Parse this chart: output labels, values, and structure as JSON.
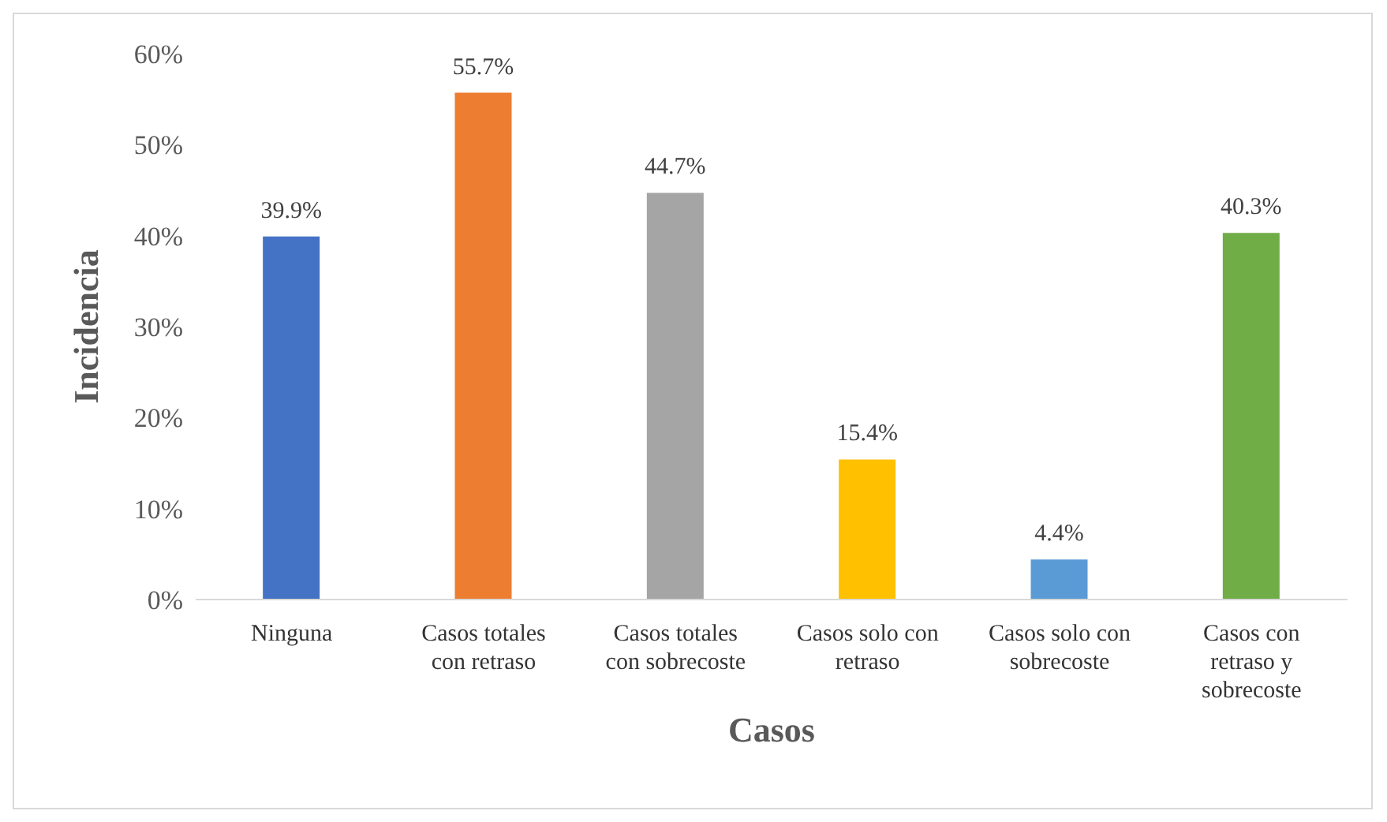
{
  "chart_data": {
    "type": "bar",
    "xlabel": "Casos",
    "ylabel": "Incidencia",
    "categories": [
      "Ninguna",
      "Casos totales con retraso",
      "Casos totales con sobrecoste",
      "Casos solo con retraso",
      "Casos solo con sobrecoste",
      "Casos con retraso y sobrecoste"
    ],
    "values": [
      39.9,
      55.7,
      44.7,
      15.4,
      4.4,
      40.3
    ],
    "colors": [
      "#4472c4",
      "#ed7d31",
      "#a5a5a5",
      "#ffc000",
      "#5b9bd5",
      "#70ad47"
    ],
    "value_labels": [
      "39.9%",
      "55.7%",
      "44.7%",
      "15.4%",
      "4.4%",
      "40.3%"
    ],
    "ylim": [
      0,
      60
    ],
    "yticks": [
      {
        "value": 0,
        "label": "0%"
      },
      {
        "value": 10,
        "label": "10%"
      },
      {
        "value": 20,
        "label": "20%"
      },
      {
        "value": 30,
        "label": "30%"
      },
      {
        "value": 40,
        "label": "40%"
      },
      {
        "value": 50,
        "label": "50%"
      },
      {
        "value": 60,
        "label": "60%"
      }
    ]
  }
}
